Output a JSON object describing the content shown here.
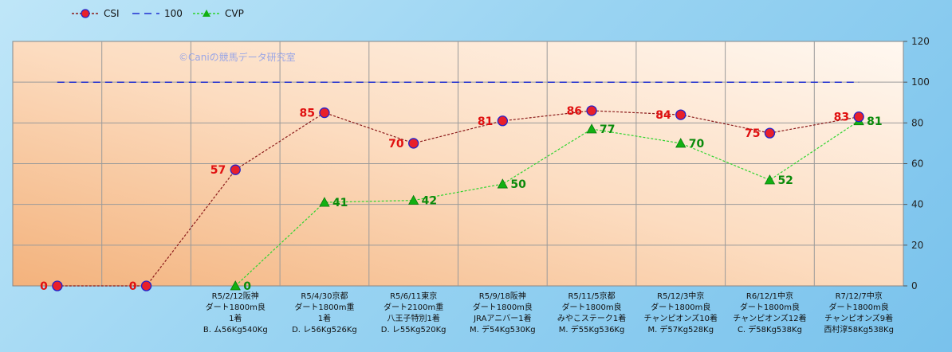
{
  "chart_data": {
    "type": "line",
    "watermark": "©Caniの競馬データ研究室",
    "categories": [
      [],
      [],
      [
        "R5/2/12阪神",
        "ダート1800m良",
        "1着",
        "B. ム56Kg540Kg"
      ],
      [
        "R5/4/30京都",
        "ダート1800m重",
        "1着",
        "D. レ56Kg526Kg"
      ],
      [
        "R5/6/11東京",
        "ダート2100m重",
        "八王子特別1着",
        "D. レ55Kg520Kg"
      ],
      [
        "R5/9/18阪神",
        "ダート1800m良",
        "JRAアニバー1着",
        "M. デ54Kg530Kg"
      ],
      [
        "R5/11/5京都",
        "ダート1800m良",
        "みやこステーク1着",
        "M. デ55Kg536Kg"
      ],
      [
        "R5/12/3中京",
        "ダート1800m良",
        "チャンピオンズ10着",
        "M. デ57Kg528Kg"
      ],
      [
        "R6/12/1中京",
        "ダート1800m良",
        "チャンピオンズ12着",
        "C. デ58Kg538Kg"
      ],
      [
        "R7/12/7中京",
        "ダート1800m良",
        "チャンピオンズ9着",
        "西村淳58Kg538Kg"
      ]
    ],
    "series": [
      {
        "name": "CSI",
        "values": [
          0,
          0,
          57,
          85,
          70,
          81,
          86,
          84,
          75,
          83
        ],
        "color": "#8b1a1a",
        "marker": "circle",
        "marker_fill": "#e8202a",
        "marker_edge": "#2222cc",
        "label_color": "#e01010"
      },
      {
        "name": "100",
        "values": [
          100,
          100,
          100,
          100,
          100,
          100,
          100,
          100,
          100,
          100
        ],
        "color": "#1f2fd0",
        "marker": "none"
      },
      {
        "name": "CVP",
        "values": [
          null,
          null,
          0,
          41,
          42,
          50,
          77,
          70,
          52,
          81
        ],
        "color": "#2fd42f",
        "marker": "triangle",
        "marker_fill": "#12b012",
        "label_color": "#0a8a0a"
      }
    ],
    "y_axis": {
      "side": "right",
      "min": 0,
      "max": 120,
      "step": 20,
      "ticks": [
        "0",
        "20",
        "40",
        "60",
        "80",
        "100",
        "120"
      ]
    },
    "grid": true,
    "legend": "top-left"
  }
}
